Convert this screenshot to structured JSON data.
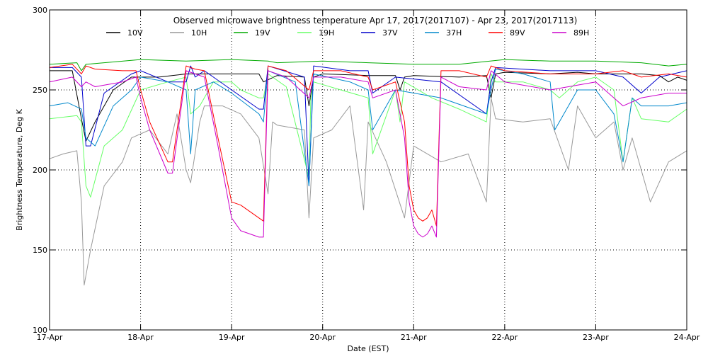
{
  "chart_data": {
    "type": "line",
    "title": "Observed microwave brightness temperature Apr 17, 2017(2017107) - Apr 23, 2017(2017113)",
    "xlabel": "Date (EST)",
    "ylabel": "Brightness Temperature, Deg K",
    "xlim": [
      0,
      7
    ],
    "ylim": [
      100,
      300
    ],
    "grid": true,
    "legend_position": "top",
    "x_ticks": [
      {
        "value": 0,
        "label": "17-Apr"
      },
      {
        "value": 1,
        "label": "18-Apr"
      },
      {
        "value": 2,
        "label": "19-Apr"
      },
      {
        "value": 3,
        "label": "20-Apr"
      },
      {
        "value": 4,
        "label": "21-Apr"
      },
      {
        "value": 5,
        "label": "22-Apr"
      },
      {
        "value": 6,
        "label": "23-Apr"
      },
      {
        "value": 7,
        "label": "24-Apr"
      }
    ],
    "y_ticks": [
      {
        "value": 100,
        "label": "100"
      },
      {
        "value": 150,
        "label": "150"
      },
      {
        "value": 200,
        "label": "200"
      },
      {
        "value": 250,
        "label": "250"
      },
      {
        "value": 300,
        "label": "300"
      }
    ],
    "x_note": "x values are in days since 17-Apr 00:00 EST",
    "series": [
      {
        "name": "10V",
        "color": "#000000",
        "x": [
          0,
          0.25,
          0.35,
          0.4,
          0.5,
          0.7,
          0.9,
          1.2,
          1.5,
          1.8,
          2.0,
          2.3,
          2.35,
          2.5,
          2.8,
          2.85,
          2.9,
          3.0,
          3.5,
          3.8,
          3.85,
          3.9,
          4.0,
          4.5,
          4.8,
          4.85,
          4.9,
          5.0,
          5.5,
          5.8,
          6.0,
          6.3,
          6.5,
          6.7,
          6.8,
          6.9,
          7.0
        ],
        "y": [
          262,
          262,
          232,
          218,
          230,
          250,
          258,
          258,
          260,
          260,
          260,
          260,
          255,
          259,
          258,
          240,
          258,
          260,
          259,
          259,
          250,
          258,
          259,
          258,
          259,
          245,
          260,
          261,
          260,
          261,
          260,
          260,
          260,
          259,
          255,
          258,
          256
        ]
      },
      {
        "name": "10H",
        "color": "#999999",
        "x": [
          0,
          0.15,
          0.3,
          0.35,
          0.38,
          0.45,
          0.6,
          0.8,
          0.9,
          1.1,
          1.3,
          1.4,
          1.5,
          1.55,
          1.65,
          1.7,
          1.9,
          2.1,
          2.3,
          2.4,
          2.45,
          2.5,
          2.8,
          2.85,
          2.9,
          3.1,
          3.3,
          3.45,
          3.5,
          3.7,
          3.9,
          4.0,
          4.3,
          4.6,
          4.8,
          4.85,
          4.9,
          5.2,
          5.5,
          5.7,
          5.8,
          6.0,
          6.2,
          6.3,
          6.4,
          6.5,
          6.6,
          6.8,
          7.0
        ],
        "y": [
          207,
          210,
          212,
          180,
          128,
          150,
          190,
          205,
          220,
          225,
          210,
          235,
          200,
          192,
          230,
          240,
          240,
          235,
          220,
          185,
          230,
          228,
          225,
          170,
          220,
          225,
          240,
          175,
          230,
          205,
          170,
          215,
          205,
          210,
          180,
          245,
          232,
          230,
          232,
          200,
          240,
          220,
          230,
          200,
          220,
          200,
          180,
          205,
          212
        ]
      },
      {
        "name": "19V",
        "color": "#00aa00",
        "x": [
          0,
          0.3,
          0.35,
          0.4,
          0.6,
          1.0,
          1.5,
          2.0,
          2.4,
          2.5,
          3.0,
          3.5,
          4.0,
          4.5,
          5.0,
          5.5,
          6.0,
          6.5,
          6.8,
          7.0
        ],
        "y": [
          266,
          267,
          262,
          266,
          267,
          269,
          268,
          269,
          268,
          267,
          268,
          267,
          266,
          266,
          269,
          268,
          268,
          267,
          265,
          266
        ]
      },
      {
        "name": "19H",
        "color": "#66ff66",
        "x": [
          0,
          0.3,
          0.35,
          0.4,
          0.45,
          0.6,
          0.8,
          1.0,
          1.3,
          1.5,
          1.55,
          1.65,
          1.8,
          2.0,
          2.1,
          2.3,
          2.35,
          2.4,
          2.6,
          2.85,
          2.87,
          2.9,
          3.2,
          3.5,
          3.55,
          3.8,
          3.85,
          3.9,
          4.2,
          4.5,
          4.8,
          4.85,
          4.9,
          5.2,
          5.5,
          5.6,
          5.8,
          6.0,
          6.2,
          6.3,
          6.4,
          6.5,
          6.8,
          7.0
        ],
        "y": [
          232,
          234,
          230,
          190,
          183,
          215,
          225,
          250,
          255,
          258,
          235,
          240,
          255,
          255,
          250,
          245,
          245,
          260,
          252,
          195,
          245,
          255,
          250,
          245,
          210,
          250,
          230,
          255,
          245,
          238,
          230,
          260,
          255,
          255,
          250,
          245,
          255,
          258,
          250,
          205,
          245,
          232,
          230,
          238
        ]
      },
      {
        "name": "37V",
        "color": "#0000cc",
        "x": [
          0,
          0.25,
          0.35,
          0.4,
          0.45,
          0.6,
          0.9,
          1.0,
          1.3,
          1.5,
          1.55,
          1.6,
          1.7,
          2.0,
          2.3,
          2.35,
          2.4,
          2.8,
          2.85,
          2.9,
          3.3,
          3.5,
          3.55,
          3.8,
          4.3,
          4.8,
          4.85,
          4.9,
          5.5,
          6.0,
          6.3,
          6.5,
          6.7,
          7.0
        ],
        "y": [
          264,
          264,
          258,
          215,
          215,
          248,
          260,
          262,
          255,
          255,
          265,
          258,
          262,
          250,
          238,
          238,
          265,
          258,
          190,
          265,
          262,
          262,
          248,
          258,
          255,
          235,
          255,
          264,
          262,
          262,
          258,
          248,
          258,
          262
        ]
      },
      {
        "name": "37H",
        "color": "#0088cc",
        "x": [
          0,
          0.2,
          0.35,
          0.4,
          0.5,
          0.7,
          0.9,
          1.0,
          1.3,
          1.5,
          1.55,
          1.6,
          1.8,
          2.0,
          2.3,
          2.35,
          2.4,
          2.7,
          2.85,
          2.9,
          3.3,
          3.5,
          3.55,
          3.8,
          4.3,
          4.8,
          4.85,
          4.9,
          5.2,
          5.5,
          5.55,
          5.8,
          6.0,
          6.2,
          6.3,
          6.4,
          6.5,
          6.8,
          7.0
        ],
        "y": [
          240,
          242,
          238,
          220,
          215,
          240,
          250,
          258,
          255,
          250,
          210,
          250,
          255,
          248,
          235,
          230,
          262,
          255,
          190,
          260,
          255,
          250,
          225,
          250,
          245,
          235,
          250,
          263,
          260,
          255,
          225,
          250,
          250,
          235,
          205,
          245,
          240,
          240,
          242
        ]
      },
      {
        "name": "89V",
        "color": "#ff0000",
        "x": [
          0,
          0.25,
          0.35,
          0.4,
          0.5,
          0.8,
          0.95,
          1.0,
          1.1,
          1.3,
          1.35,
          1.5,
          1.6,
          1.7,
          1.85,
          2.0,
          2.1,
          2.3,
          2.35,
          2.4,
          2.6,
          2.85,
          2.9,
          3.2,
          3.5,
          3.55,
          3.8,
          3.9,
          3.95,
          4.0,
          4.05,
          4.1,
          4.15,
          4.2,
          4.25,
          4.3,
          4.5,
          4.8,
          4.85,
          5.0,
          5.5,
          6.0,
          6.3,
          6.5,
          6.8,
          7.0
        ],
        "y": [
          264,
          266,
          260,
          265,
          263,
          262,
          262,
          250,
          230,
          205,
          205,
          265,
          263,
          262,
          220,
          180,
          178,
          170,
          168,
          265,
          262,
          250,
          262,
          262,
          258,
          250,
          255,
          230,
          190,
          175,
          170,
          168,
          170,
          175,
          165,
          262,
          262,
          258,
          265,
          262,
          260,
          260,
          262,
          258,
          260,
          258
        ]
      },
      {
        "name": "89H",
        "color": "#cc00cc",
        "x": [
          0,
          0.25,
          0.35,
          0.4,
          0.5,
          0.8,
          0.95,
          1.0,
          1.1,
          1.3,
          1.35,
          1.5,
          1.6,
          1.7,
          1.85,
          2.0,
          2.1,
          2.3,
          2.35,
          2.4,
          2.6,
          2.85,
          2.9,
          3.2,
          3.5,
          3.55,
          3.8,
          3.9,
          3.95,
          4.0,
          4.05,
          4.1,
          4.15,
          4.2,
          4.25,
          4.3,
          4.5,
          4.8,
          4.85,
          5.0,
          5.5,
          6.0,
          6.3,
          6.5,
          6.8,
          7.0
        ],
        "y": [
          255,
          258,
          252,
          255,
          252,
          255,
          258,
          245,
          225,
          198,
          198,
          262,
          260,
          258,
          215,
          170,
          162,
          158,
          158,
          262,
          258,
          245,
          258,
          258,
          255,
          245,
          250,
          220,
          180,
          165,
          160,
          158,
          160,
          165,
          158,
          258,
          252,
          250,
          262,
          255,
          250,
          255,
          240,
          245,
          248,
          248
        ]
      }
    ]
  }
}
